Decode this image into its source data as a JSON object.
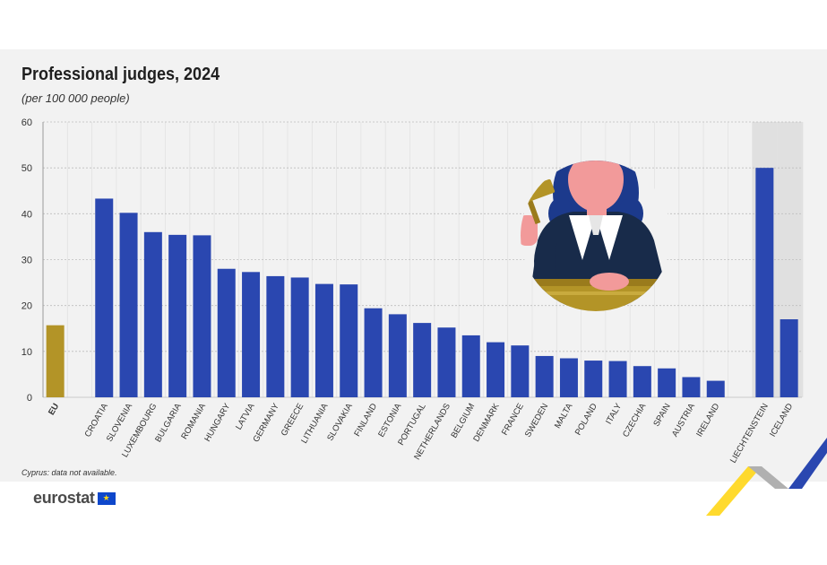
{
  "chart_data": {
    "type": "bar",
    "title": "Professional judges, 2024",
    "subtitle": "(per 100 000 people)",
    "ylim": [
      0,
      60
    ],
    "yticks": [
      0,
      10,
      20,
      30,
      40,
      50,
      60
    ],
    "grid": true,
    "groups": [
      {
        "categories": [
          "EU"
        ],
        "values": [
          15.7
        ]
      },
      {
        "categories": [
          "CROATIA",
          "SLOVENIA",
          "LUXEMBOURG",
          "BULGARIA",
          "ROMANIA",
          "HUNGARY",
          "LATVIA",
          "GERMANY",
          "GREECE",
          "LITHUANIA",
          "SLOVAKIA",
          "FINLAND",
          "ESTONIA",
          "PORTUGAL",
          "NETHERLANDS",
          "BELGIUM",
          "DENMARK",
          "FRANCE",
          "SWEDEN",
          "MALTA",
          "POLAND",
          "ITALY",
          "CZECHIA",
          "SPAIN",
          "AUSTRIA",
          "IRELAND"
        ],
        "values": [
          43.3,
          40.2,
          36.0,
          35.4,
          35.3,
          28.0,
          27.3,
          26.4,
          26.1,
          24.7,
          24.6,
          19.4,
          18.1,
          16.2,
          15.2,
          13.5,
          12.0,
          11.3,
          9.0,
          8.5,
          8.0,
          7.9,
          6.8,
          6.3,
          4.4,
          3.6
        ]
      },
      {
        "categories": [
          "LIECHTENSTEIN",
          "ICELAND"
        ],
        "values": [
          50.0,
          17.0
        ]
      }
    ],
    "colors": {
      "eu": "#b39427",
      "member": "#2a47b0",
      "efta_band": "#e0e0e0",
      "grid": "#bdbdbd"
    }
  },
  "footnote": "Cyprus: data not available.",
  "logo": {
    "text": "eurostat",
    "flag_stars": "★"
  },
  "illustration": {
    "icon": "judge-with-gavel-icon"
  }
}
